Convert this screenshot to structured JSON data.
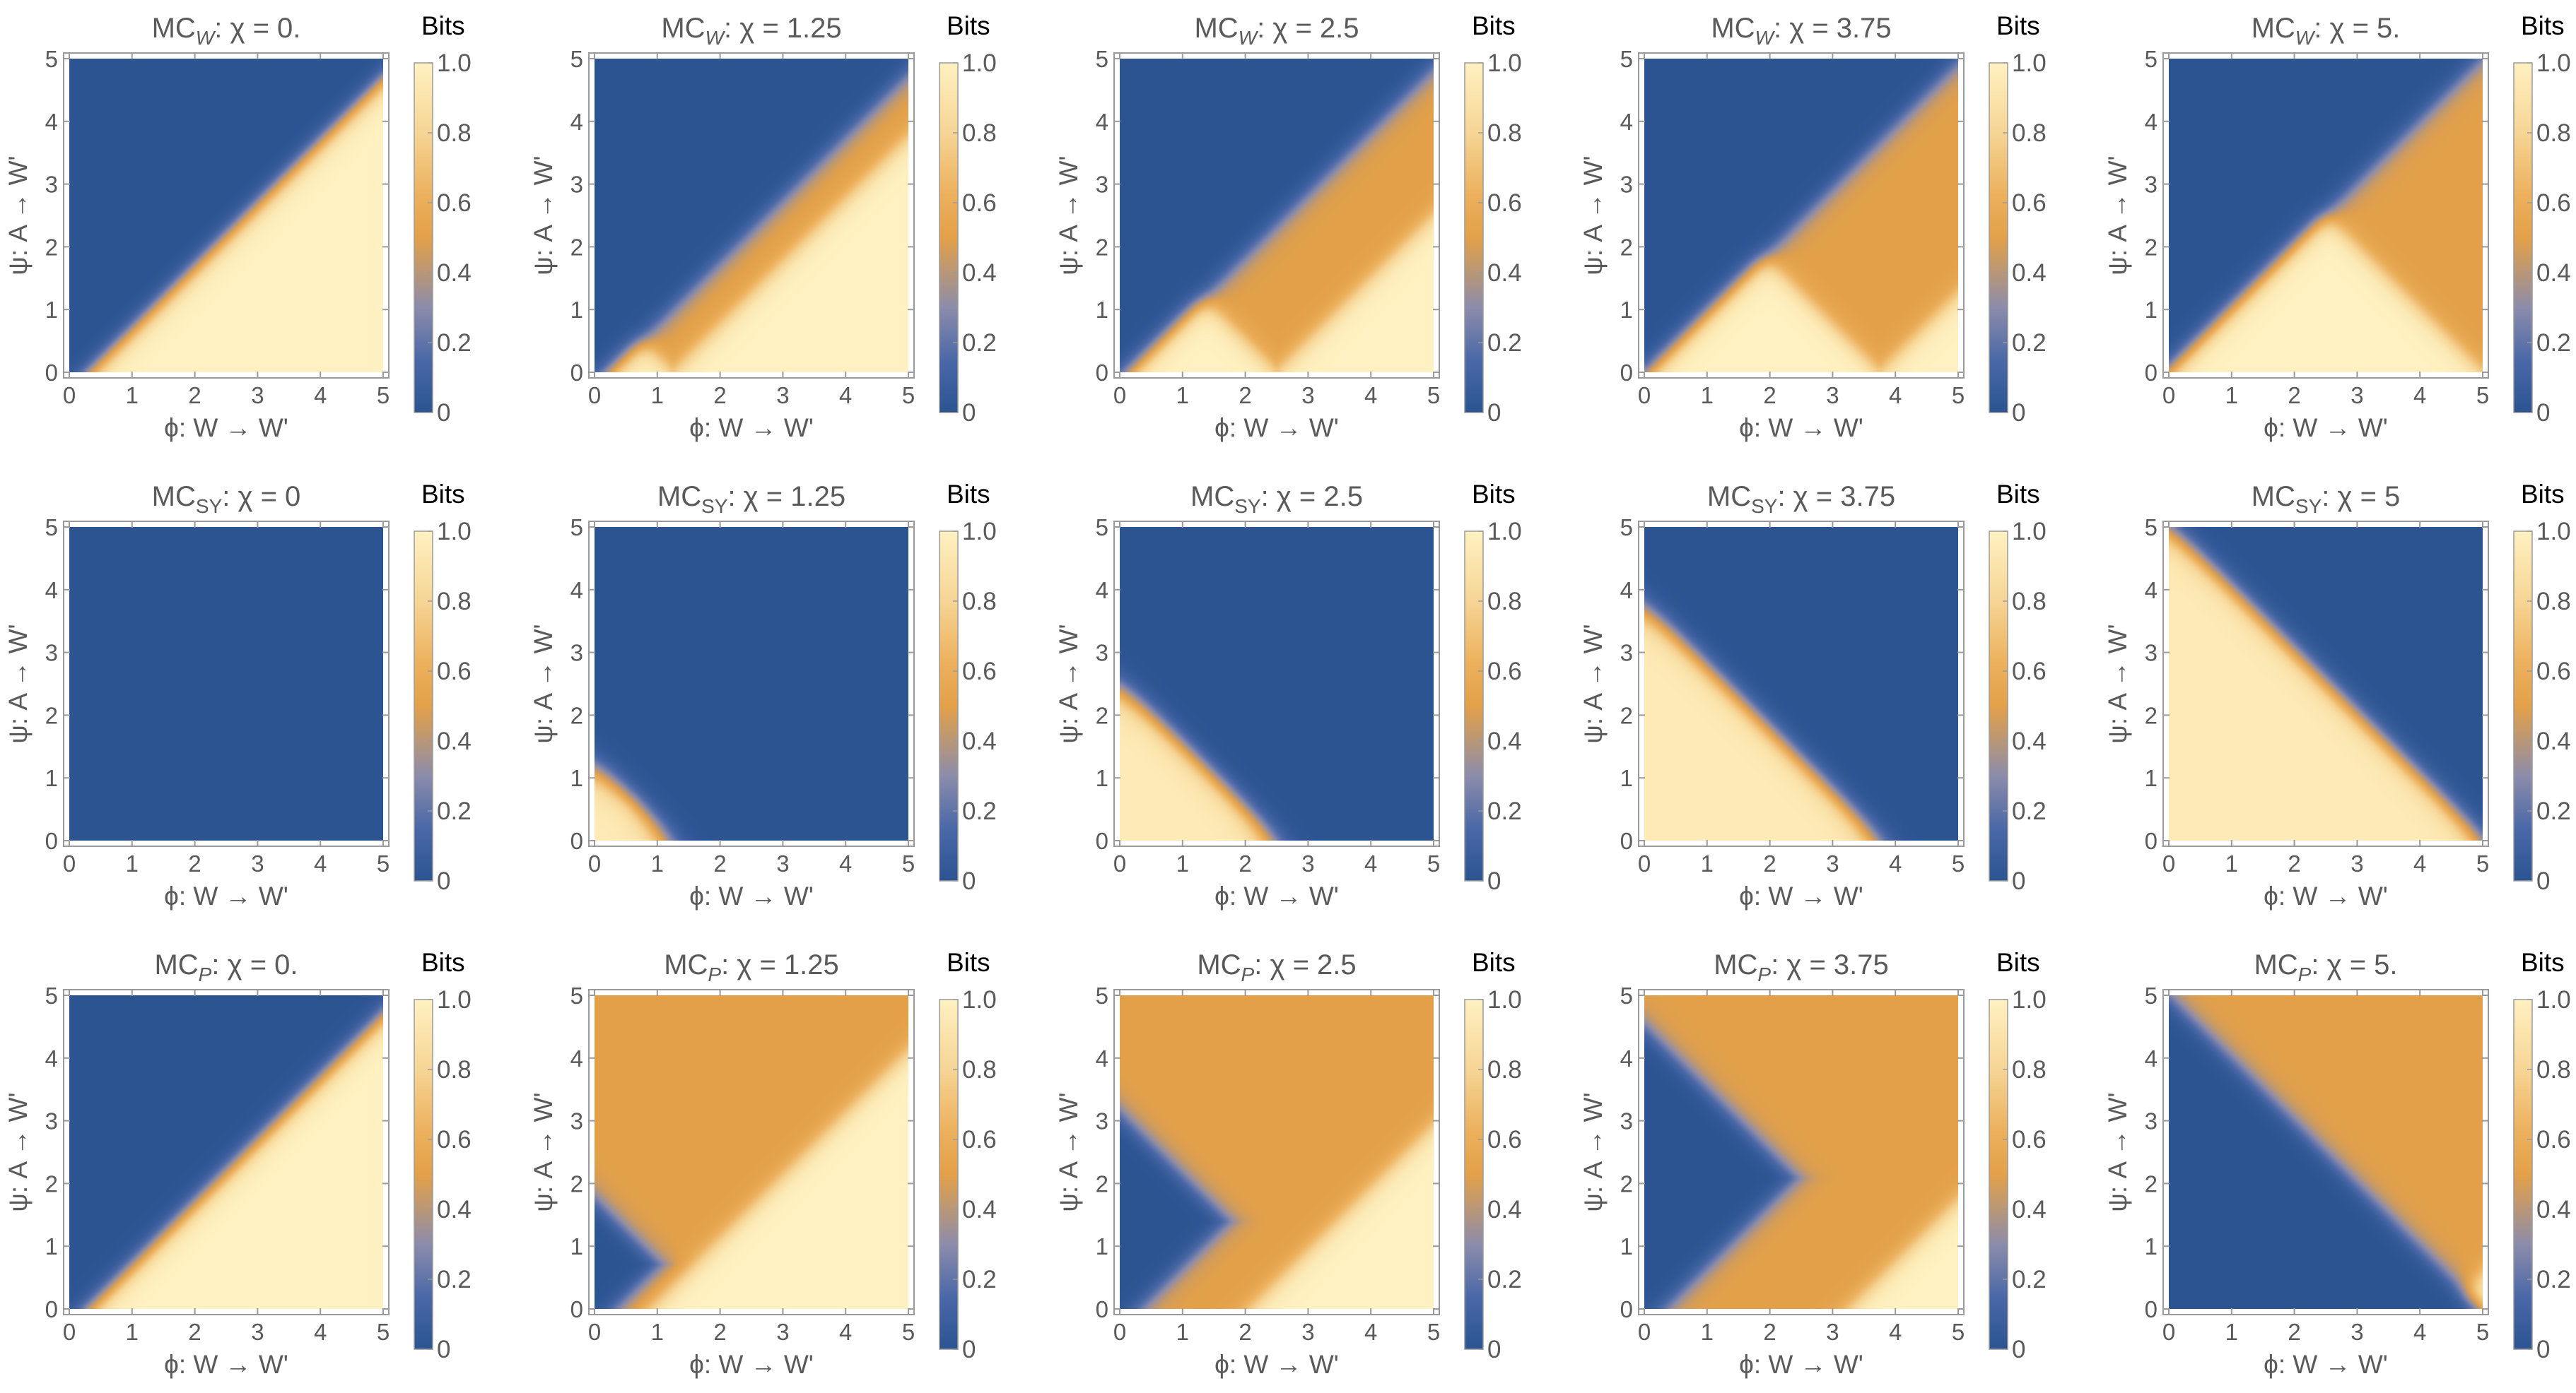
{
  "chart_data": {
    "type": "heatmap",
    "description": "Grid of 15 density plots (3 measures x 5 chi values) of information measure in bits over phi (x) and psi (y).",
    "xlabel": "ϕ: W → W'",
    "ylabel": "ψ: A → W'",
    "xlim": [
      0,
      5
    ],
    "ylim": [
      0,
      5
    ],
    "x_ticks": [
      "0",
      "1",
      "2",
      "3",
      "4",
      "5"
    ],
    "y_ticks": [
      "0",
      "1",
      "2",
      "3",
      "4",
      "5"
    ],
    "colorbar": {
      "label": "Bits",
      "range": [
        0,
        1
      ],
      "ticks": [
        "0",
        "0.2",
        "0.4",
        "0.6",
        "0.8",
        "1.0"
      ],
      "stops": [
        {
          "value": 0.0,
          "color": "#2b5491"
        },
        {
          "value": 0.15,
          "color": "#4a68a8"
        },
        {
          "value": 0.3,
          "color": "#8c8cab"
        },
        {
          "value": 0.42,
          "color": "#c2996d"
        },
        {
          "value": 0.5,
          "color": "#e3a049"
        },
        {
          "value": 0.62,
          "color": "#ecb05c"
        },
        {
          "value": 0.8,
          "color": "#f6d595"
        },
        {
          "value": 1.0,
          "color": "#fff1c1"
        }
      ]
    },
    "rows": [
      {
        "measure": "W",
        "title_prefix": "MC",
        "subscript": "W",
        "subscript_italic": true,
        "panels": [
          {
            "chi": 0,
            "chi_label": "0."
          },
          {
            "chi": 1.25,
            "chi_label": "1.25"
          },
          {
            "chi": 2.5,
            "chi_label": "2.5"
          },
          {
            "chi": 3.75,
            "chi_label": "3.75"
          },
          {
            "chi": 5,
            "chi_label": "5."
          }
        ]
      },
      {
        "measure": "SY",
        "title_prefix": "MC",
        "subscript": "SY",
        "subscript_italic": false,
        "panels": [
          {
            "chi": 0,
            "chi_label": "0"
          },
          {
            "chi": 1.25,
            "chi_label": "1.25"
          },
          {
            "chi": 2.5,
            "chi_label": "2.5"
          },
          {
            "chi": 3.75,
            "chi_label": "3.75"
          },
          {
            "chi": 5,
            "chi_label": "5"
          }
        ]
      },
      {
        "measure": "P",
        "title_prefix": "MC",
        "subscript": "P",
        "subscript_italic": true,
        "panels": [
          {
            "chi": 0,
            "chi_label": "0."
          },
          {
            "chi": 1.25,
            "chi_label": "1.25"
          },
          {
            "chi": 2.5,
            "chi_label": "2.5"
          },
          {
            "chi": 3.75,
            "chi_label": "3.75"
          },
          {
            "chi": 5,
            "chi_label": "5."
          }
        ]
      }
    ]
  }
}
